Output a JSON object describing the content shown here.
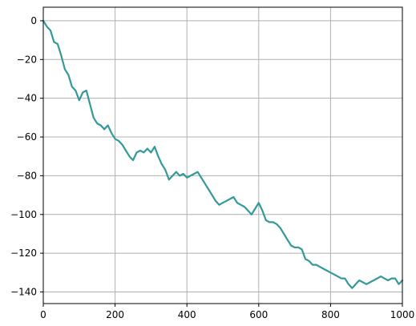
{
  "chart_data": {
    "type": "line",
    "title": "",
    "xlabel": "",
    "ylabel": "",
    "xlim": [
      0,
      1000
    ],
    "ylim": [
      -146,
      7
    ],
    "grid": true,
    "legend": "none",
    "xticks": [
      0,
      200,
      400,
      600,
      800,
      1000
    ],
    "yticks": [
      0,
      -20,
      -40,
      -60,
      -80,
      -100,
      -120,
      -140
    ],
    "series": [
      {
        "color": "#339999",
        "x": [
          0,
          10,
          20,
          30,
          40,
          50,
          60,
          70,
          80,
          90,
          100,
          110,
          120,
          130,
          140,
          150,
          160,
          170,
          180,
          190,
          200,
          210,
          220,
          230,
          240,
          250,
          260,
          270,
          280,
          290,
          300,
          310,
          320,
          330,
          340,
          350,
          360,
          370,
          380,
          390,
          400,
          410,
          420,
          430,
          440,
          450,
          460,
          470,
          480,
          490,
          500,
          510,
          520,
          530,
          540,
          550,
          560,
          570,
          580,
          590,
          600,
          610,
          620,
          630,
          640,
          650,
          660,
          670,
          680,
          690,
          700,
          710,
          720,
          730,
          740,
          750,
          760,
          770,
          780,
          790,
          800,
          810,
          820,
          830,
          840,
          850,
          860,
          870,
          880,
          890,
          900,
          910,
          920,
          930,
          940,
          950,
          960,
          970,
          980,
          990,
          1000
        ],
        "y": [
          0,
          -3,
          -5,
          -11,
          -12,
          -18,
          -25,
          -28,
          -34,
          -36,
          -41,
          -37,
          -36,
          -43,
          -50,
          -53,
          -54,
          -56,
          -54,
          -58,
          -61,
          -62,
          -64,
          -67,
          -70,
          -72,
          -68,
          -67,
          -68,
          -66,
          -68,
          -65,
          -70,
          -74,
          -77,
          -82,
          -80,
          -78,
          -80,
          -79,
          -81,
          -80,
          -79,
          -78,
          -81,
          -84,
          -87,
          -90,
          -93,
          -95,
          -94,
          -93,
          -92,
          -91,
          -94,
          -95,
          -96,
          -98,
          -100,
          -97,
          -94,
          -98,
          -103,
          -104,
          -104,
          -105,
          -107,
          -110,
          -113,
          -116,
          -117,
          -117,
          -118,
          -123,
          -124,
          -126,
          -126,
          -127,
          -128,
          -129,
          -130,
          -131,
          -132,
          -133,
          -133,
          -136,
          -138,
          -136,
          -134,
          -135,
          -136,
          -135,
          -134,
          -133,
          -132,
          -133,
          -134,
          -133,
          -133,
          -136,
          -134
        ]
      }
    ]
  }
}
